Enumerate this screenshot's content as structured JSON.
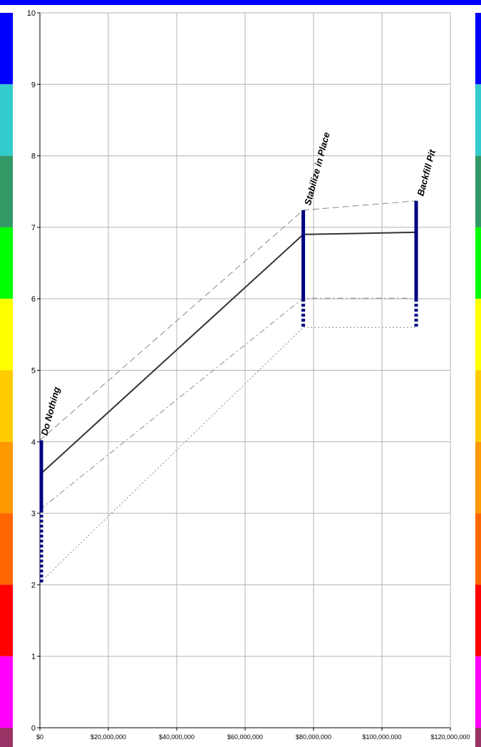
{
  "chart_data": {
    "type": "line",
    "title": "",
    "xlabel": "",
    "ylabel": "",
    "xlim": [
      0,
      120000000
    ],
    "ylim": [
      0,
      10
    ],
    "grid": true,
    "x_ticks": [
      {
        "value": 0,
        "label": "$0"
      },
      {
        "value": 20000000,
        "label": "$20,000,000"
      },
      {
        "value": 40000000,
        "label": "$40,000,000"
      },
      {
        "value": 60000000,
        "label": "$60,000,000"
      },
      {
        "value": 80000000,
        "label": "$80,000,000"
      },
      {
        "value": 100000000,
        "label": "$100,000,000"
      },
      {
        "value": 120000000,
        "label": "$120,000,000"
      }
    ],
    "y_ticks": [
      {
        "value": 0,
        "label": "0"
      },
      {
        "value": 1,
        "label": "1"
      },
      {
        "value": 2,
        "label": "2"
      },
      {
        "value": 3,
        "label": "3"
      },
      {
        "value": 4,
        "label": "4"
      },
      {
        "value": 5,
        "label": "5"
      },
      {
        "value": 6,
        "label": "6"
      },
      {
        "value": 7,
        "label": "7"
      },
      {
        "value": 8,
        "label": "8"
      },
      {
        "value": 9,
        "label": "9"
      },
      {
        "value": 10,
        "label": "10"
      }
    ],
    "alternatives": [
      {
        "label": "Do Nothing",
        "x": 0,
        "high": 4.02,
        "low": 2.03,
        "solid_bottom": 3.05
      },
      {
        "label": "Stabilize in Place",
        "x": 77000000,
        "high": 7.24,
        "low": 5.6,
        "solid_bottom": 6.0
      },
      {
        "label": "Backfill Pit",
        "x": 110000000,
        "high": 7.37,
        "low": 5.6,
        "solid_bottom": 6.0
      }
    ],
    "series": [
      {
        "style": "solid",
        "values": [
          3.54,
          6.9,
          6.93
        ]
      },
      {
        "style": "dashed",
        "values": [
          4.02,
          7.24,
          7.37
        ]
      },
      {
        "style": "dashdot",
        "values": [
          3.05,
          6.01,
          6.01
        ]
      },
      {
        "style": "dotted",
        "values": [
          2.03,
          5.6,
          5.6
        ]
      }
    ],
    "color_scale": [
      {
        "from": 9,
        "to": 10,
        "color": "#0000ff"
      },
      {
        "from": 8,
        "to": 9,
        "color": "#33cccc"
      },
      {
        "from": 7,
        "to": 8,
        "color": "#339966"
      },
      {
        "from": 6,
        "to": 7,
        "color": "#00ff00"
      },
      {
        "from": 5,
        "to": 6,
        "color": "#ffff00"
      },
      {
        "from": 4,
        "to": 5,
        "color": "#ffcc00"
      },
      {
        "from": 3,
        "to": 4,
        "color": "#ff9900"
      },
      {
        "from": 2,
        "to": 3,
        "color": "#ff6600"
      },
      {
        "from": 1,
        "to": 2,
        "color": "#ff0000"
      },
      {
        "from": 0,
        "to": 1,
        "color": "#ff00ff"
      },
      {
        "from": -0.8,
        "to": 0,
        "color": "#993366"
      }
    ],
    "colors": {
      "bar": "#000080",
      "solid_line": "#333333",
      "reference_lines": "#888888",
      "grid": "#b3b3b3"
    }
  }
}
